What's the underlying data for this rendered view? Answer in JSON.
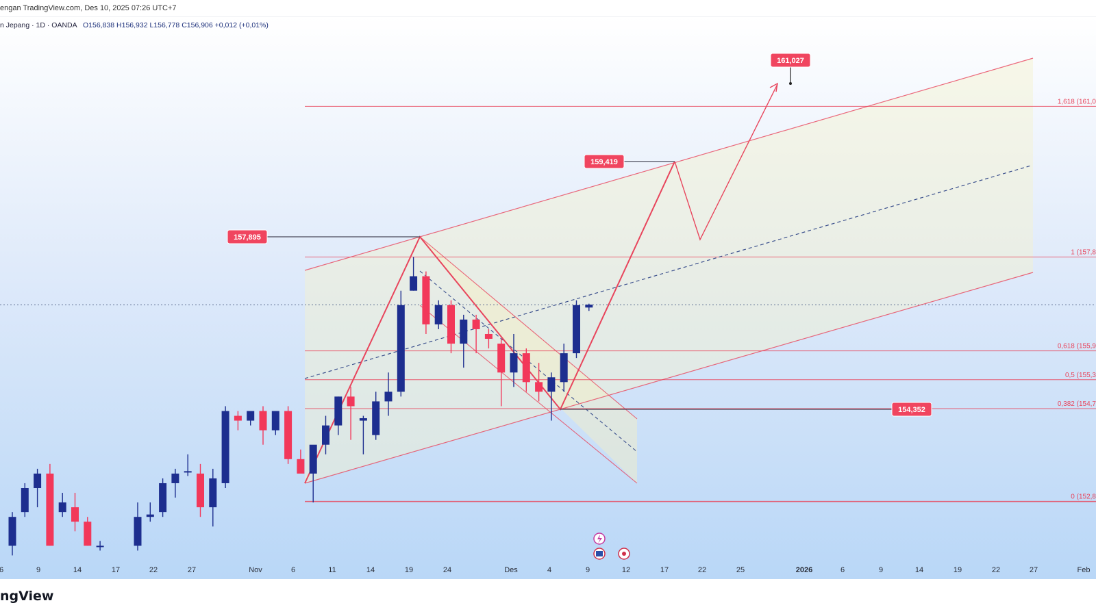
{
  "header": {
    "published": "engan TradingView.com, Des 10, 2025 07:26 UTC+7",
    "symbol": "n Jepang · 1D · OANDA",
    "ohlc": "O156,838  H156,932  L156,778  C156,906  +0,012 (+0,01%)"
  },
  "footer": {
    "brand": "ngView"
  },
  "colors": {
    "up": "#1d2e8f",
    "down": "#f2385a",
    "line": "#e8455c",
    "label_bg": "#f0455f",
    "bg_top": "#ffffff",
    "bg_bottom": "#b9d7f7"
  },
  "chart_data": {
    "type": "candlestick",
    "ylim": [
      151.55,
      162.5
    ],
    "x_ticks": [
      "6",
      "9",
      "14",
      "17",
      "22",
      "27",
      "Nov",
      "6",
      "11",
      "14",
      "19",
      "24",
      "Des",
      "4",
      "9",
      "12",
      "17",
      "22",
      "25",
      "2026",
      "6",
      "9",
      "14",
      "19",
      "22",
      "27",
      "Feb"
    ],
    "candles": [
      {
        "i": 0,
        "o": 151.9,
        "h": 152.6,
        "l": 151.7,
        "c": 152.5
      },
      {
        "i": 1,
        "o": 152.6,
        "h": 153.2,
        "l": 152.5,
        "c": 153.1
      },
      {
        "i": 2,
        "o": 153.1,
        "h": 153.5,
        "l": 152.7,
        "c": 153.4
      },
      {
        "i": 3,
        "o": 153.4,
        "h": 153.6,
        "l": 151.9,
        "c": 151.9
      },
      {
        "i": 4,
        "o": 152.6,
        "h": 153.0,
        "l": 152.5,
        "c": 152.8
      },
      {
        "i": 5,
        "o": 152.7,
        "h": 153.0,
        "l": 152.2,
        "c": 152.4
      },
      {
        "i": 6,
        "o": 152.4,
        "h": 152.5,
        "l": 151.9,
        "c": 151.9
      },
      {
        "i": 7,
        "o": 151.9,
        "h": 152.0,
        "l": 151.8,
        "c": 151.9
      },
      {
        "i": 10,
        "o": 151.9,
        "h": 152.8,
        "l": 151.8,
        "c": 152.5
      },
      {
        "i": 11,
        "o": 152.5,
        "h": 152.8,
        "l": 152.4,
        "c": 152.55
      },
      {
        "i": 12,
        "o": 152.6,
        "h": 153.3,
        "l": 152.5,
        "c": 153.2
      },
      {
        "i": 13,
        "o": 153.2,
        "h": 153.5,
        "l": 152.9,
        "c": 153.4
      },
      {
        "i": 14,
        "o": 153.45,
        "h": 153.8,
        "l": 153.35,
        "c": 153.45
      },
      {
        "i": 15,
        "o": 153.4,
        "h": 153.6,
        "l": 152.5,
        "c": 152.7
      },
      {
        "i": 16,
        "o": 152.7,
        "h": 153.5,
        "l": 152.3,
        "c": 153.3
      },
      {
        "i": 17,
        "o": 153.2,
        "h": 154.8,
        "l": 153.1,
        "c": 154.7
      },
      {
        "i": 18,
        "o": 154.6,
        "h": 154.7,
        "l": 154.3,
        "c": 154.5
      },
      {
        "i": 19,
        "o": 154.5,
        "h": 154.7,
        "l": 154.4,
        "c": 154.7
      },
      {
        "i": 20,
        "o": 154.7,
        "h": 154.8,
        "l": 154.0,
        "c": 154.3
      },
      {
        "i": 21,
        "o": 154.3,
        "h": 154.7,
        "l": 154.2,
        "c": 154.7
      },
      {
        "i": 22,
        "o": 154.7,
        "h": 154.8,
        "l": 153.6,
        "c": 153.7
      },
      {
        "i": 23,
        "o": 153.7,
        "h": 153.9,
        "l": 153.5,
        "c": 153.4
      },
      {
        "i": 24,
        "o": 153.4,
        "h": 153.9,
        "l": 152.8,
        "c": 154.0
      },
      {
        "i": 25,
        "o": 154.0,
        "h": 154.6,
        "l": 153.8,
        "c": 154.4
      },
      {
        "i": 26,
        "o": 154.4,
        "h": 155.0,
        "l": 154.2,
        "c": 155.0
      },
      {
        "i": 27,
        "o": 155.0,
        "h": 155.2,
        "l": 154.1,
        "c": 154.8
      },
      {
        "i": 28,
        "o": 154.5,
        "h": 154.6,
        "l": 153.8,
        "c": 154.55
      },
      {
        "i": 29,
        "o": 154.2,
        "h": 155.1,
        "l": 154.1,
        "c": 154.9
      },
      {
        "i": 30,
        "o": 154.9,
        "h": 155.5,
        "l": 154.6,
        "c": 155.1
      },
      {
        "i": 31,
        "o": 155.1,
        "h": 157.2,
        "l": 155.0,
        "c": 156.9
      },
      {
        "i": 32,
        "o": 157.2,
        "h": 157.9,
        "l": 157.2,
        "c": 157.5
      },
      {
        "i": 33,
        "o": 157.5,
        "h": 157.6,
        "l": 156.3,
        "c": 156.5
      },
      {
        "i": 34,
        "o": 156.5,
        "h": 157.0,
        "l": 156.4,
        "c": 156.9
      },
      {
        "i": 35,
        "o": 156.9,
        "h": 157.0,
        "l": 155.9,
        "c": 156.1
      },
      {
        "i": 36,
        "o": 156.1,
        "h": 156.7,
        "l": 155.6,
        "c": 156.6
      },
      {
        "i": 37,
        "o": 156.6,
        "h": 156.7,
        "l": 155.9,
        "c": 156.4
      },
      {
        "i": 38,
        "o": 156.3,
        "h": 156.4,
        "l": 156.0,
        "c": 156.2
      },
      {
        "i": 39,
        "o": 156.1,
        "h": 156.2,
        "l": 154.8,
        "c": 155.5
      },
      {
        "i": 40,
        "o": 155.5,
        "h": 156.3,
        "l": 155.2,
        "c": 155.9
      },
      {
        "i": 41,
        "o": 155.9,
        "h": 156.0,
        "l": 155.1,
        "c": 155.3
      },
      {
        "i": 42,
        "o": 155.3,
        "h": 155.7,
        "l": 154.9,
        "c": 155.1
      },
      {
        "i": 43,
        "o": 155.1,
        "h": 155.5,
        "l": 154.5,
        "c": 155.4
      },
      {
        "i": 44,
        "o": 155.3,
        "h": 156.1,
        "l": 155.1,
        "c": 155.9
      },
      {
        "i": 45,
        "o": 155.9,
        "h": 157.0,
        "l": 155.8,
        "c": 156.9
      },
      {
        "i": 46,
        "o": 156.85,
        "h": 156.93,
        "l": 156.78,
        "c": 156.91
      }
    ],
    "fib_levels": [
      {
        "label": "1,618 (161,0",
        "price": 161.03
      },
      {
        "label": "1 (157,8",
        "price": 157.9
      },
      {
        "label": "0,618 (155,9",
        "price": 155.95
      },
      {
        "label": "0,5 (155,3",
        "price": 155.35
      },
      {
        "label": "0,382 (154,7",
        "price": 154.75
      },
      {
        "label": "0 (152,8",
        "price": 152.82
      }
    ],
    "price_labels": [
      {
        "text": "161,027",
        "price": 161.027
      },
      {
        "text": "159,419",
        "price": 159.419
      },
      {
        "text": "157,895",
        "price": 157.895
      },
      {
        "text": "154,352",
        "price": 154.352
      }
    ],
    "current_price": 156.906
  }
}
